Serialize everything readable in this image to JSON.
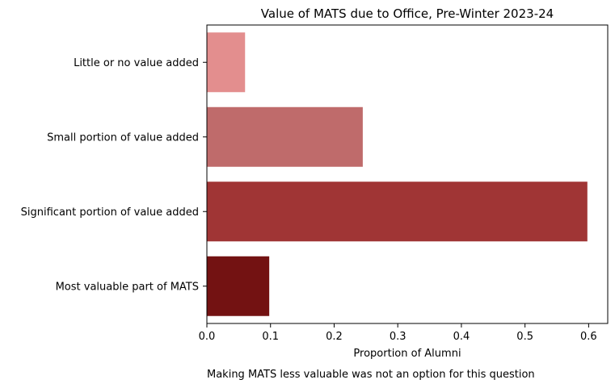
{
  "chart_data": {
    "type": "bar",
    "orientation": "horizontal",
    "title": "Value of MATS due to Office, Pre-Winter 2023-24",
    "xlabel": "Proportion of Alumni",
    "ylabel": "",
    "categories": [
      "Little or no value added",
      "Small portion of value added",
      "Significant portion of value added",
      "Most valuable part of MATS"
    ],
    "values": [
      0.06,
      0.245,
      0.598,
      0.098
    ],
    "colors": [
      "#e38e8e",
      "#bf6b6b",
      "#a03535",
      "#731212"
    ],
    "xlim": [
      0,
      0.63
    ],
    "xticks": [
      0.0,
      0.1,
      0.2,
      0.3,
      0.4,
      0.5,
      0.6
    ],
    "xtick_labels": [
      "0.0",
      "0.1",
      "0.2",
      "0.3",
      "0.4",
      "0.5",
      "0.6"
    ],
    "grid": false,
    "legend": "none",
    "annotation": "Making MATS less valuable was not an option for this question"
  }
}
